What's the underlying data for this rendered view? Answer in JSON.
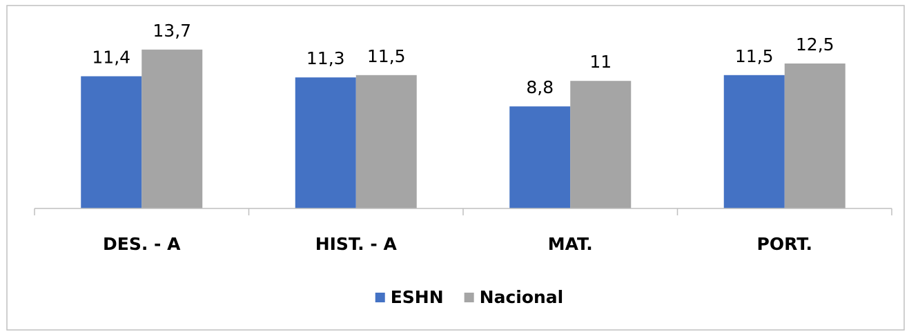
{
  "chart_data": {
    "type": "bar",
    "categories": [
      "DES. - A",
      "HIST. - A",
      "MAT.",
      "PORT."
    ],
    "series": [
      {
        "name": "ESHN",
        "color": "#4472c4",
        "values": [
          11.4,
          11.3,
          8.8,
          11.5
        ],
        "value_labels": [
          "11,4",
          "11,3",
          "8,8",
          "11,5"
        ]
      },
      {
        "name": "Nacional",
        "color": "#a5a5a5",
        "values": [
          13.7,
          11.5,
          11,
          12.5
        ],
        "value_labels": [
          "13,7",
          "11,5",
          "11",
          "12,5"
        ]
      }
    ],
    "ylim": [
      0,
      15
    ],
    "legend": "bottom"
  }
}
